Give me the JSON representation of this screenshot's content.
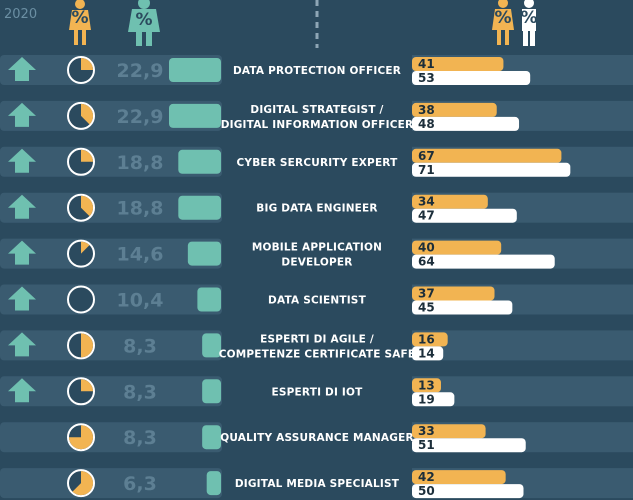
{
  "header": {
    "year_label": "2020",
    "percent_glyph": "%"
  },
  "colors": {
    "background": "#2b4a5e",
    "row_band": "#3a5b70",
    "teal": "#6fc0b0",
    "female": "#f2b452",
    "male": "#ffffff",
    "pie_empty": "#2b4a5e",
    "pie_fill": "#f2b452"
  },
  "chart_data": {
    "type": "bar",
    "rows": [
      {
        "role": [
          "DATA PROTECTION OFFICER"
        ],
        "trend_up": true,
        "pie_fraction": 0.25,
        "percent": "22,9",
        "percent_value": 22.9,
        "female": 41,
        "male": 53
      },
      {
        "role": [
          "DIGITAL STRATEGIST /",
          "DIGITAL INFORMATION OFFICER"
        ],
        "trend_up": true,
        "pie_fraction": 0.375,
        "percent": "22,9",
        "percent_value": 22.9,
        "female": 38,
        "male": 48
      },
      {
        "role": [
          "CYBER SERCURITY EXPERT"
        ],
        "trend_up": true,
        "pie_fraction": 0.25,
        "percent": "18,8",
        "percent_value": 18.8,
        "female": 67,
        "male": 71
      },
      {
        "role": [
          "BIG DATA ENGINEER"
        ],
        "trend_up": true,
        "pie_fraction": 0.375,
        "percent": "18,8",
        "percent_value": 18.8,
        "female": 34,
        "male": 47
      },
      {
        "role": [
          "MOBILE APPLICATION",
          "DEVELOPER"
        ],
        "trend_up": true,
        "pie_fraction": 0.125,
        "percent": "14,6",
        "percent_value": 14.6,
        "female": 40,
        "male": 64
      },
      {
        "role": [
          "DATA SCIENTIST"
        ],
        "trend_up": true,
        "pie_fraction": 0.0,
        "percent": "10,4",
        "percent_value": 10.4,
        "female": 37,
        "male": 45
      },
      {
        "role": [
          "ESPERTI DI AGILE /",
          "COMPETENZE CERTIFICATE SAFE"
        ],
        "trend_up": true,
        "pie_fraction": 0.5,
        "percent": "8,3",
        "percent_value": 8.3,
        "female": 16,
        "male": 14
      },
      {
        "role": [
          "ESPERTI DI IOT"
        ],
        "trend_up": true,
        "pie_fraction": 0.25,
        "percent": "8,3",
        "percent_value": 8.3,
        "female": 13,
        "male": 19
      },
      {
        "role": [
          "QUALITY ASSURANCE MANAGER"
        ],
        "trend_up": false,
        "pie_fraction": 0.75,
        "percent": "8,3",
        "percent_value": 8.3,
        "female": 33,
        "male": 51
      },
      {
        "role": [
          "DIGITAL MEDIA SPECIALIST"
        ],
        "trend_up": false,
        "pie_fraction": 0.625,
        "percent": "6,3",
        "percent_value": 6.3,
        "female": 42,
        "male": 50
      }
    ]
  }
}
